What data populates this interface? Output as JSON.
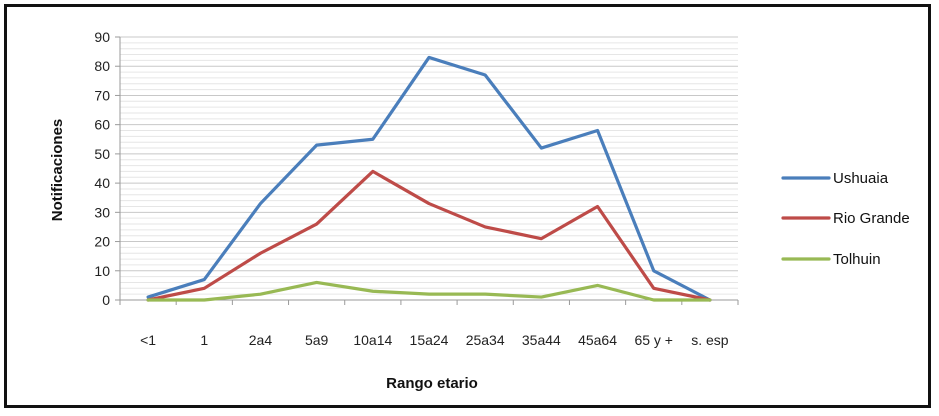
{
  "chart_data": {
    "type": "line",
    "categories": [
      "<1",
      "1",
      "2a4",
      "5a9",
      "10a14",
      "15a24",
      "25a34",
      "35a44",
      "45a64",
      "65 y +",
      "s. esp"
    ],
    "series": [
      {
        "name": "Ushuaia",
        "color": "#4a7ebb",
        "values": [
          1,
          7,
          33,
          53,
          55,
          83,
          77,
          52,
          58,
          10,
          0
        ]
      },
      {
        "name": "Rio Grande",
        "color": "#be4b48",
        "values": [
          0,
          4,
          16,
          26,
          44,
          33,
          25,
          21,
          32,
          4,
          0
        ]
      },
      {
        "name": "Tolhuin",
        "color": "#98b954",
        "values": [
          0,
          0,
          2,
          6,
          3,
          2,
          2,
          1,
          5,
          0,
          0
        ]
      }
    ],
    "title": "",
    "xlabel": "Rango etario",
    "ylabel": "Notificaciones",
    "ylim": [
      0,
      90
    ],
    "yticks": [
      0,
      10,
      20,
      30,
      40,
      50,
      60,
      70,
      80,
      90
    ],
    "grid": true,
    "legend_position": "right"
  }
}
